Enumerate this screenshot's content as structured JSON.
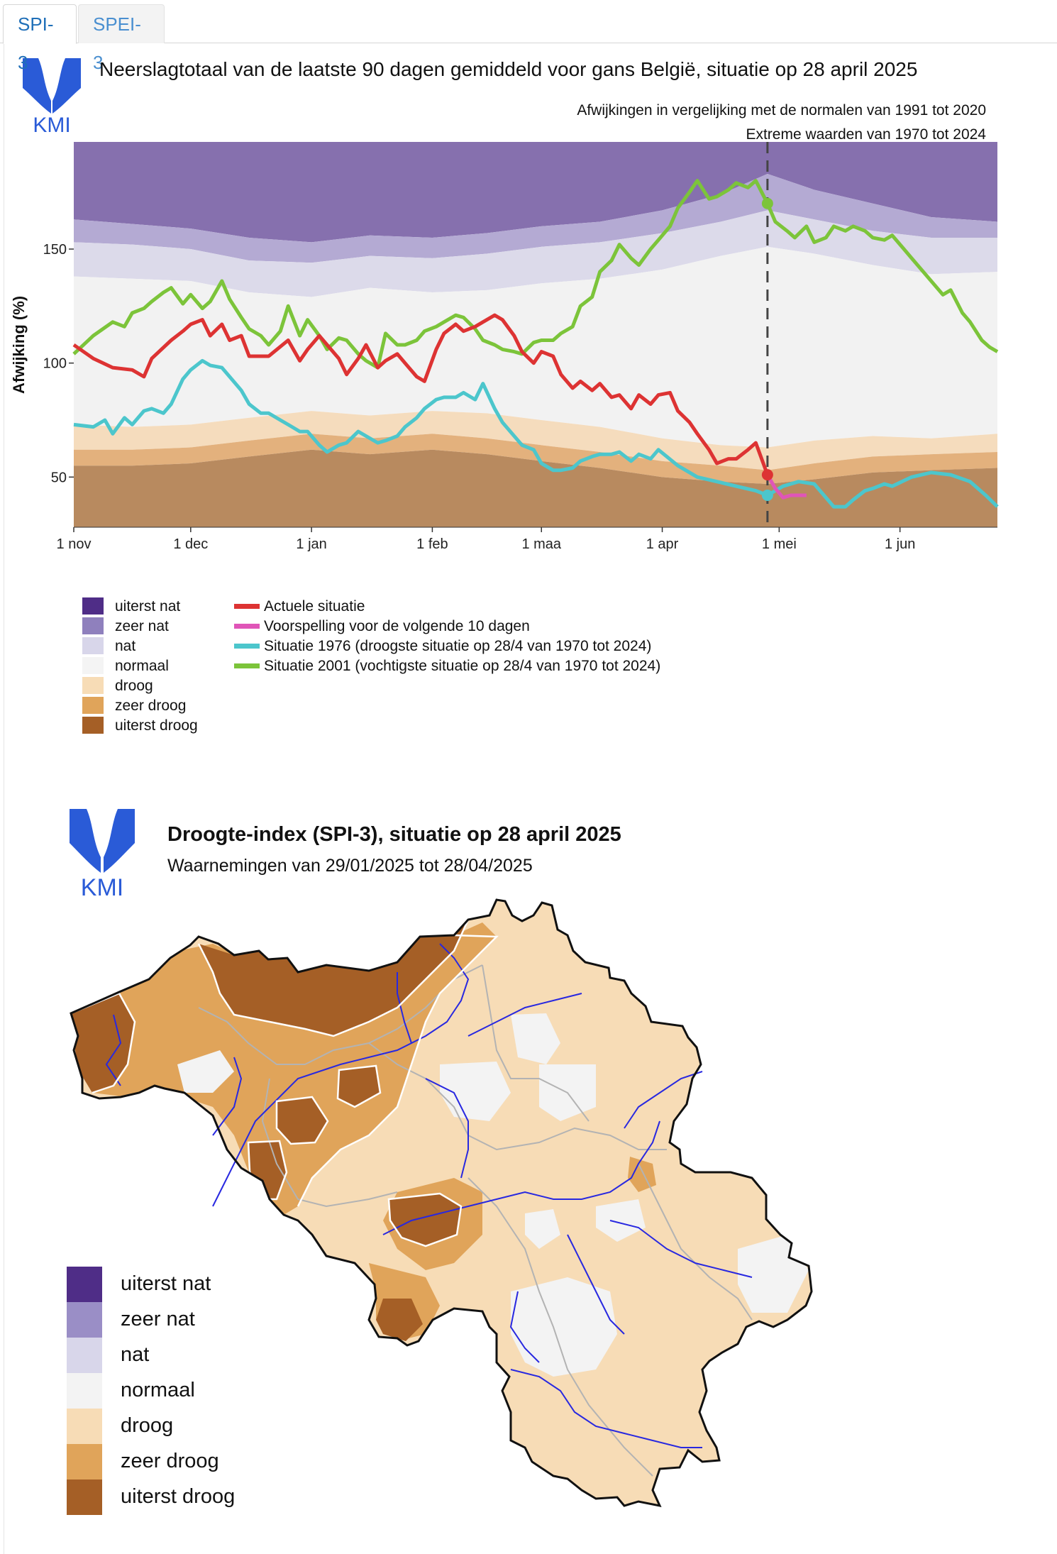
{
  "tabs": [
    {
      "label": "SPI-3",
      "active": true
    },
    {
      "label": "SPEI-3",
      "active": false
    }
  ],
  "logo": {
    "text": "KMI",
    "color": "#2a5bd7"
  },
  "chart": {
    "title": "Neerslagtotaal van de laatste 90 dagen gemiddeld voor gans België, situatie op 28 april 2025",
    "subtitle1": "Afwijkingen in vergelijking met de normalen van 1991 tot 2020",
    "subtitle2": "Extreme waarden van 1970 tot 2024",
    "ylabel": "Afwijking (%)",
    "legend_bands": [
      {
        "label": "uiterst nat",
        "color": "#4f2d87"
      },
      {
        "label": "zeer nat",
        "color": "#8f80bd"
      },
      {
        "label": "nat",
        "color": "#d8d6ea"
      },
      {
        "label": "normaal",
        "color": "#f4f4f4"
      },
      {
        "label": "droog",
        "color": "#f7dcb6"
      },
      {
        "label": "zeer droog",
        "color": "#e0a45a"
      },
      {
        "label": "uiterst droog",
        "color": "#a55f26"
      }
    ],
    "legend_lines": [
      {
        "label": "Actuele situatie",
        "color": "#dd3333"
      },
      {
        "label": "Voorspelling voor de volgende 10 dagen",
        "color": "#e055b8"
      },
      {
        "label": "Situatie 1976 (droogste situatie op 28/4 van 1970 tot 2024)",
        "color": "#4cc6cc"
      },
      {
        "label": "Situatie 2001 (vochtigste situatie op 28/4 van 1970 tot 2024)",
        "color": "#7cc43a"
      }
    ]
  },
  "chart_data": {
    "type": "line",
    "title": "Neerslagtotaal van de laatste 90 dagen gemiddeld voor gans België, situatie op 28 april 2025",
    "ylabel": "Afwijking (%)",
    "xlabel": "",
    "x_ticks": [
      "1 nov",
      "1 dec",
      "1 jan",
      "1 feb",
      "1 maa",
      "1 apr",
      "1 mei",
      "1 jun"
    ],
    "x_tick_days": [
      0,
      30,
      61,
      92,
      120,
      151,
      181,
      212
    ],
    "xlim_days": [
      0,
      237
    ],
    "y_ticks": [
      50,
      100,
      150
    ],
    "ylim": [
      28,
      197
    ],
    "reference_day": 178,
    "bands": {
      "days": [
        0,
        15,
        30,
        45,
        61,
        76,
        92,
        106,
        120,
        135,
        151,
        166,
        178,
        190,
        205,
        220,
        237
      ],
      "extreme_dry": [
        55,
        55,
        56,
        59,
        62,
        60,
        62,
        60,
        57,
        54,
        50,
        48,
        47,
        49,
        52,
        53,
        54
      ],
      "very_dry": [
        62,
        62,
        63,
        66,
        69,
        67,
        69,
        67,
        64,
        61,
        57,
        55,
        53,
        56,
        59,
        60,
        61
      ],
      "dry": [
        73,
        72,
        73,
        76,
        79,
        77,
        79,
        78,
        75,
        72,
        67,
        64,
        63,
        66,
        68,
        67,
        69
      ],
      "wet": [
        138,
        137,
        136,
        131,
        129,
        133,
        131,
        132,
        135,
        137,
        141,
        147,
        151,
        148,
        143,
        139,
        140
      ],
      "very_wet": [
        153,
        152,
        150,
        145,
        144,
        147,
        146,
        148,
        151,
        153,
        157,
        162,
        167,
        163,
        158,
        155,
        155
      ],
      "extremely_wet": [
        163,
        161,
        159,
        155,
        153,
        156,
        155,
        157,
        160,
        162,
        167,
        174,
        183,
        176,
        170,
        164,
        162
      ]
    },
    "series": [
      {
        "name": "Actuele situatie",
        "x": [
          0,
          5,
          10,
          15,
          18,
          20,
          25,
          28,
          30,
          33,
          35,
          38,
          40,
          43,
          45,
          50,
          55,
          58,
          60,
          63,
          65,
          68,
          70,
          73,
          75,
          78,
          80,
          83,
          85,
          88,
          90,
          93,
          95,
          98,
          100,
          103,
          105,
          108,
          110,
          113,
          115,
          118,
          120,
          123,
          125,
          128,
          130,
          133,
          135,
          138,
          140,
          143,
          145,
          148,
          150,
          153,
          155,
          158,
          160,
          163,
          165,
          168,
          170,
          173,
          175,
          178
        ],
        "y": [
          108,
          102,
          98,
          97,
          94,
          102,
          110,
          114,
          117,
          119,
          112,
          117,
          110,
          112,
          103,
          103,
          110,
          101,
          106,
          112,
          108,
          102,
          95,
          102,
          108,
          98,
          101,
          104,
          100,
          94,
          92,
          106,
          113,
          117,
          114,
          116,
          118,
          121,
          119,
          112,
          105,
          100,
          105,
          103,
          95,
          89,
          92,
          88,
          91,
          85,
          86,
          80,
          86,
          82,
          86,
          87,
          79,
          74,
          69,
          62,
          56,
          58,
          58,
          62,
          65,
          51
        ]
      },
      {
        "name": "Voorspelling voor de volgende 10 dagen",
        "x": [
          178,
          180,
          182,
          184,
          186,
          188
        ],
        "y": [
          51,
          45,
          41,
          42,
          42,
          42
        ]
      },
      {
        "name": "Situatie 1976 (droogste situatie op 28/4 van 1970 tot 2024)",
        "x": [
          0,
          5,
          8,
          10,
          13,
          15,
          18,
          20,
          23,
          25,
          28,
          30,
          33,
          35,
          38,
          40,
          43,
          45,
          48,
          50,
          53,
          55,
          58,
          60,
          63,
          65,
          68,
          70,
          73,
          75,
          78,
          80,
          83,
          85,
          88,
          90,
          93,
          95,
          98,
          100,
          103,
          105,
          108,
          110,
          113,
          115,
          118,
          120,
          123,
          125,
          128,
          130,
          133,
          135,
          138,
          140,
          143,
          145,
          148,
          150,
          155,
          160,
          165,
          170,
          175,
          178,
          182,
          186,
          190,
          195,
          198,
          200,
          203,
          205,
          208,
          210,
          215,
          220,
          225,
          230,
          234,
          237
        ],
        "y": [
          73,
          72,
          75,
          69,
          76,
          73,
          79,
          80,
          78,
          82,
          93,
          97,
          101,
          99,
          98,
          94,
          88,
          82,
          78,
          78,
          75,
          73,
          70,
          70,
          64,
          61,
          64,
          65,
          70,
          68,
          65,
          66,
          68,
          72,
          76,
          80,
          84,
          85,
          85,
          87,
          84,
          91,
          80,
          74,
          68,
          64,
          62,
          56,
          53,
          53,
          54,
          57,
          59,
          60,
          60,
          61,
          57,
          60,
          58,
          62,
          55,
          50,
          48,
          46,
          44,
          42,
          46,
          48,
          47,
          37,
          37,
          40,
          44,
          45,
          47,
          46,
          50,
          52,
          51,
          48,
          42,
          37
        ]
      },
      {
        "name": "Situatie 2001 (vochtigste situatie op 28/4 van 1970 tot 2024)",
        "x": [
          0,
          5,
          10,
          13,
          15,
          18,
          20,
          23,
          25,
          28,
          30,
          33,
          35,
          38,
          40,
          43,
          45,
          48,
          50,
          53,
          55,
          58,
          60,
          63,
          65,
          68,
          70,
          73,
          75,
          78,
          80,
          83,
          85,
          88,
          90,
          93,
          95,
          98,
          100,
          103,
          105,
          108,
          110,
          113,
          115,
          118,
          120,
          123,
          125,
          128,
          130,
          133,
          135,
          138,
          140,
          143,
          145,
          148,
          150,
          153,
          155,
          158,
          160,
          163,
          165,
          168,
          170,
          173,
          175,
          178,
          180,
          183,
          185,
          188,
          190,
          193,
          195,
          198,
          200,
          203,
          205,
          208,
          210,
          213,
          215,
          218,
          220,
          223,
          225,
          228,
          230,
          233,
          235,
          237
        ],
        "y": [
          104,
          112,
          118,
          116,
          122,
          124,
          127,
          131,
          133,
          126,
          130,
          124,
          127,
          136,
          128,
          120,
          115,
          112,
          108,
          114,
          125,
          112,
          119,
          112,
          106,
          111,
          110,
          104,
          101,
          98,
          113,
          108,
          108,
          110,
          114,
          116,
          118,
          121,
          120,
          115,
          110,
          108,
          106,
          105,
          104,
          109,
          110,
          110,
          113,
          116,
          125,
          129,
          140,
          145,
          152,
          146,
          143,
          150,
          154,
          160,
          168,
          175,
          180,
          172,
          173,
          176,
          179,
          177,
          180,
          170,
          162,
          158,
          155,
          160,
          153,
          155,
          160,
          158,
          160,
          158,
          155,
          154,
          156,
          150,
          146,
          140,
          136,
          130,
          132,
          122,
          118,
          110,
          107,
          105
        ]
      }
    ]
  },
  "map": {
    "title": "Droogte-index (SPI-3), situatie op 28 april 2025",
    "subtitle": "Waarnemingen van 29/01/2025 tot 28/04/2025",
    "legend": [
      {
        "label": "uiterst nat",
        "color": "#4f2d87"
      },
      {
        "label": "zeer nat",
        "color": "#9a8ec6"
      },
      {
        "label": "nat",
        "color": "#d8d6ea"
      },
      {
        "label": "normaal",
        "color": "#f3f3f3"
      },
      {
        "label": "droog",
        "color": "#f7dcb6"
      },
      {
        "label": "zeer droog",
        "color": "#e0a45a"
      },
      {
        "label": "uiterst droog",
        "color": "#a55f26"
      }
    ]
  }
}
